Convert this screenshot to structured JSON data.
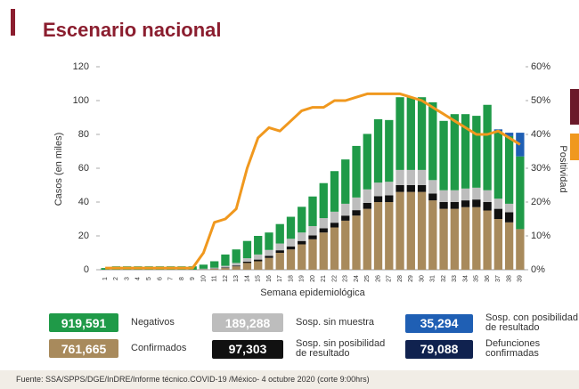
{
  "chart_data": {
    "type": "stacked_bar_line",
    "title": "Escenario nacional",
    "y_label": "Casos (en miles)",
    "y2_label": "Positividad",
    "x_label": "Semana epidemiológica",
    "source": "Fuente: SSA/SPPS/DGE/InDRE/Informe técnico.COVID-19 /México- 4 octubre 2020 (corte 9:00hrs)",
    "categories": [
      "1",
      "2",
      "3",
      "4",
      "5",
      "6",
      "7",
      "8",
      "9",
      "10",
      "11",
      "12",
      "13",
      "14",
      "15",
      "16",
      "17",
      "18",
      "19",
      "20",
      "21",
      "22",
      "23",
      "24",
      "25",
      "26",
      "27",
      "28",
      "29",
      "30",
      "31",
      "32",
      "33",
      "34",
      "35",
      "36",
      "37",
      "38",
      "39"
    ],
    "ylim": [
      0,
      120
    ],
    "yticks": [
      0,
      20,
      40,
      60,
      80,
      100,
      120
    ],
    "y2lim": [
      0,
      60
    ],
    "y2ticks": [
      {
        "value": 0,
        "label": "0%"
      },
      {
        "value": 10,
        "label": "10%"
      },
      {
        "value": 20,
        "label": "20%"
      },
      {
        "value": 30,
        "label": "30%"
      },
      {
        "value": 40,
        "label": "40%"
      },
      {
        "value": 50,
        "label": "50%"
      },
      {
        "value": 60,
        "label": "60%"
      }
    ],
    "series": [
      {
        "name": "Confirmados",
        "total": "761,665",
        "color": "#a88a5c",
        "values": [
          0,
          0,
          0,
          0,
          0,
          0,
          0,
          0,
          0,
          0.2,
          0.5,
          1,
          2,
          4,
          5,
          7,
          10,
          12,
          15,
          18,
          22,
          25,
          29,
          32,
          36,
          40,
          40,
          46,
          46,
          46,
          41,
          36,
          36,
          37,
          37,
          35,
          30,
          28,
          24
        ]
      },
      {
        "name": "Sosp. sin posibilidad de resultado",
        "total": "97,303",
        "color": "#111111",
        "values": [
          0,
          0,
          0,
          0,
          0,
          0,
          0,
          0,
          0,
          0.1,
          0.2,
          0.3,
          0.5,
          0.8,
          1,
          1.2,
          1.5,
          1.8,
          2,
          2.3,
          2.5,
          2.8,
          3,
          3.2,
          3.5,
          3.5,
          4,
          4,
          4,
          4,
          4,
          4,
          4,
          4,
          4.5,
          5,
          6,
          6,
          0
        ]
      },
      {
        "name": "Sosp. sin muestra",
        "total": "189,288",
        "color": "#bdbdbd",
        "values": [
          0,
          0,
          0,
          0,
          0,
          0,
          0,
          0,
          0,
          0.3,
          0.5,
          1,
          1.5,
          2,
          3,
          3.5,
          4,
          4.5,
          5,
          5.5,
          6,
          6.5,
          7,
          7.5,
          8,
          8,
          8,
          9,
          9,
          9,
          8,
          7,
          7,
          7,
          7,
          7,
          6,
          5,
          0
        ]
      },
      {
        "name": "Negativos",
        "total": "919,591",
        "color": "#1f9a48",
        "values": [
          1,
          2,
          2,
          2,
          2,
          2,
          2,
          2,
          2,
          2.4,
          3.8,
          6.7,
          8,
          10.2,
          11,
          10.3,
          11.5,
          13,
          15.2,
          17.5,
          20.7,
          24,
          26.2,
          30.5,
          32.8,
          37.5,
          36.5,
          43,
          43,
          43,
          46,
          41,
          45,
          44,
          42.5,
          50.5,
          40,
          40,
          43
        ]
      },
      {
        "name": "Sosp. con posibilidad de resultado",
        "total": "35,294",
        "color": "#1f5fb4",
        "values": [
          0,
          0,
          0,
          0,
          0,
          0,
          0,
          0,
          0,
          0,
          0,
          0,
          0,
          0,
          0,
          0,
          0,
          0,
          0,
          0,
          0,
          0,
          0,
          0,
          0,
          0,
          0,
          0,
          0,
          0,
          0,
          0,
          0,
          0,
          0,
          0,
          1,
          2,
          14
        ]
      },
      {
        "name": "Positividad",
        "color": "#f0981e",
        "axis": "y2",
        "kind": "line",
        "values": [
          0.5,
          0.5,
          0.5,
          0.5,
          0.5,
          0.5,
          0.5,
          0.5,
          0.5,
          5,
          14,
          15,
          18,
          30,
          39,
          42,
          41,
          44,
          47,
          48,
          48,
          50,
          50,
          51,
          52,
          52,
          52,
          52,
          51,
          50,
          48,
          46,
          44,
          42,
          40,
          40,
          41,
          39,
          37
        ]
      }
    ],
    "deaths": {
      "name": "Defunciones confirmadas",
      "total": "79,088",
      "color": "#10224f"
    }
  }
}
